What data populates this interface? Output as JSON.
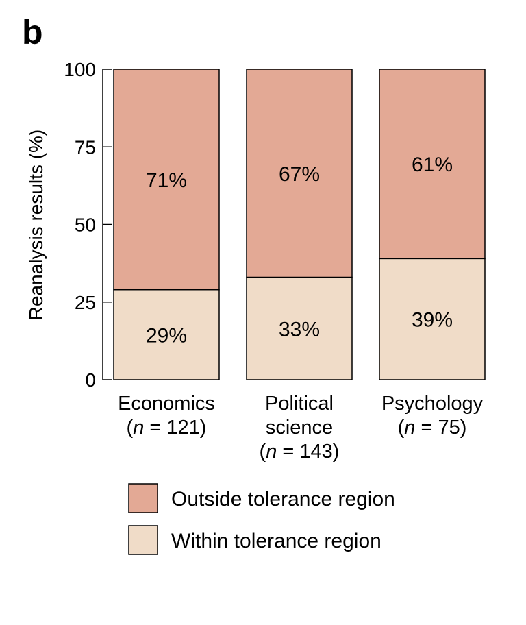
{
  "panel_label": "b",
  "colors": {
    "outside": "#e3a995",
    "within": "#f0dcc8",
    "stroke": "#000000"
  },
  "chart_data": {
    "type": "bar",
    "stacked": true,
    "ylabel": "Reanalysis results (%)",
    "ylim": [
      0,
      100
    ],
    "yticks": [
      0,
      25,
      50,
      75,
      100
    ],
    "ytick_labels": [
      "0",
      "25",
      "50",
      "75",
      "100"
    ],
    "categories": [
      {
        "lines": [
          "Economics"
        ],
        "n_line": [
          "(",
          "n",
          " = 121)"
        ]
      },
      {
        "lines": [
          "Political",
          "science"
        ],
        "n_line": [
          "(",
          "n",
          " = 143)"
        ]
      },
      {
        "lines": [
          "Psychology"
        ],
        "n_line": [
          "(",
          "n",
          " = 75)"
        ]
      }
    ],
    "series": [
      {
        "name": "Within tolerance region",
        "color_key": "within",
        "values": [
          29,
          33,
          39
        ],
        "labels": [
          "29%",
          "33%",
          "39%"
        ]
      },
      {
        "name": "Outside tolerance region",
        "color_key": "outside",
        "values": [
          71,
          67,
          61
        ],
        "labels": [
          "71%",
          "67%",
          "61%"
        ]
      }
    ],
    "legend": {
      "placement": "bottom",
      "entries": [
        "Outside tolerance region",
        "Within tolerance region"
      ],
      "color_keys": [
        "outside",
        "within"
      ]
    },
    "grid": false
  }
}
